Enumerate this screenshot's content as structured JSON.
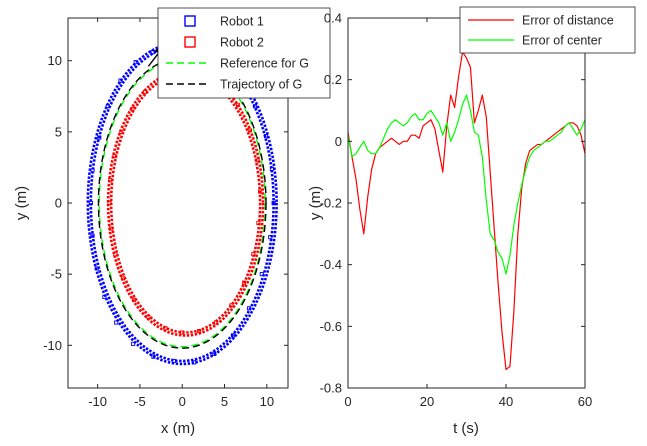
{
  "chart_data": [
    {
      "type": "scatter",
      "xlabel": "x (m)",
      "ylabel": "y (m)",
      "xlim": [
        -13.5,
        12.5
      ],
      "ylim": [
        -13,
        13
      ],
      "xticks": [
        -10,
        -5,
        0,
        5,
        10
      ],
      "yticks": [
        10,
        5,
        0,
        -5,
        -10
      ],
      "grid": false,
      "legend_placement": "top-right",
      "series": [
        {
          "name": "Robot 1",
          "color": "#0000ff",
          "style": "open-square-markers",
          "ellipse": {
            "cx": 0,
            "cy": 0,
            "rx": 10.8,
            "ry": 11.1
          },
          "points": [
            [
              -3.5,
              10.6
            ],
            [
              -5.5,
              9.9
            ],
            [
              -7.3,
              8.6
            ],
            [
              -8.8,
              6.8
            ],
            [
              -9.8,
              4.6
            ],
            [
              -10.6,
              2.3
            ],
            [
              -10.8,
              0
            ],
            [
              -10.6,
              -2.3
            ],
            [
              -10.1,
              -4.6
            ],
            [
              -9.2,
              -6.6
            ],
            [
              -7.8,
              -8.4
            ],
            [
              -5.8,
              -9.9
            ],
            [
              -3.4,
              -10.8
            ],
            [
              -1.0,
              -11.1
            ],
            [
              1.4,
              -11.2
            ],
            [
              3.8,
              -10.6
            ],
            [
              6.0,
              -9.3
            ],
            [
              7.9,
              -7.4
            ],
            [
              9.4,
              -5.0
            ],
            [
              10.4,
              -2.4
            ],
            [
              10.8,
              0
            ],
            [
              10.6,
              2.4
            ],
            [
              9.9,
              4.7
            ],
            [
              8.6,
              6.8
            ],
            [
              7.0,
              8.5
            ]
          ]
        },
        {
          "name": "Robot 2",
          "color": "#ff0000",
          "style": "open-square-markers",
          "ellipse": {
            "cx": 0.4,
            "cy": 0,
            "rx": 8.8,
            "ry": 9.1
          },
          "points": [
            [
              -2.7,
              8.6
            ],
            [
              -4.4,
              7.8
            ],
            [
              -5.9,
              6.6
            ],
            [
              -7.2,
              5.0
            ],
            [
              -8.0,
              3.3
            ],
            [
              -8.5,
              1.6
            ],
            [
              -8.6,
              0
            ],
            [
              -8.4,
              -1.8
            ],
            [
              -7.9,
              -3.6
            ],
            [
              -7.0,
              -5.3
            ],
            [
              -5.7,
              -6.8
            ],
            [
              -4.0,
              -8.0
            ],
            [
              -2.0,
              -8.8
            ],
            [
              0,
              -9.1
            ],
            [
              2.0,
              -9.0
            ],
            [
              4.0,
              -8.4
            ],
            [
              5.8,
              -7.2
            ],
            [
              7.3,
              -5.6
            ],
            [
              8.4,
              -3.6
            ],
            [
              9.0,
              -1.4
            ],
            [
              9.2,
              0.8
            ],
            [
              8.9,
              3.0
            ],
            [
              8.0,
              5.1
            ],
            [
              6.6,
              6.9
            ],
            [
              4.6,
              8.3
            ]
          ]
        },
        {
          "name": "Reference for G",
          "color": "#00ff00",
          "style": "dashed-line",
          "ellipse": {
            "cx": 0,
            "cy": 0,
            "rx": 9.8,
            "ry": 10.1
          },
          "points": [
            [
              -3.6,
              9.4
            ],
            [
              -6.5,
              7.6
            ],
            [
              -8.6,
              4.8
            ],
            [
              -9.7,
              1.6
            ],
            [
              -9.6,
              -1.8
            ],
            [
              -8.6,
              -5.0
            ],
            [
              -6.6,
              -7.7
            ],
            [
              -3.9,
              -9.5
            ],
            [
              -0.8,
              -10.1
            ],
            [
              2.4,
              -9.8
            ],
            [
              5.4,
              -8.4
            ],
            [
              7.8,
              -6.1
            ],
            [
              9.3,
              -3.2
            ],
            [
              9.8,
              0
            ],
            [
              9.3,
              3.2
            ],
            [
              7.8,
              6.1
            ],
            [
              5.4,
              8.4
            ],
            [
              2.4,
              9.8
            ]
          ]
        },
        {
          "name": "Trajectory of G",
          "color": "#000000",
          "style": "dashed-line",
          "ellipse": {
            "cx": 0,
            "cy": 0,
            "rx": 9.9,
            "ry": 10.2
          },
          "points": [
            [
              -3.7,
              9.5
            ],
            [
              -6.6,
              7.7
            ],
            [
              -8.7,
              4.9
            ],
            [
              -9.8,
              1.6
            ],
            [
              -9.7,
              -1.8
            ],
            [
              -8.7,
              -5.1
            ],
            [
              -6.7,
              -7.8
            ],
            [
              -4.0,
              -9.6
            ],
            [
              -0.8,
              -10.2
            ],
            [
              2.4,
              -9.9
            ],
            [
              5.5,
              -8.5
            ],
            [
              7.9,
              -6.2
            ],
            [
              9.4,
              -3.3
            ],
            [
              9.9,
              0
            ],
            [
              9.4,
              3.3
            ],
            [
              7.9,
              6.2
            ],
            [
              5.5,
              8.5
            ],
            [
              2.4,
              9.9
            ]
          ]
        }
      ],
      "annotations": [
        {
          "type": "arrow",
          "from": [
            -4.0,
            9.6
          ],
          "to": [
            -2.2,
            11.0
          ],
          "color": "#000000"
        }
      ]
    },
    {
      "type": "line",
      "xlabel": "t (s)",
      "ylabel": "y (m)",
      "xlim": [
        0,
        60
      ],
      "ylim": [
        -0.8,
        0.4
      ],
      "xticks": [
        0,
        20,
        40,
        60
      ],
      "yticks": [
        0.4,
        0.2,
        0,
        -0.2,
        -0.4,
        -0.6,
        -0.8
      ],
      "grid": false,
      "legend_placement": "top-right",
      "series": [
        {
          "name": "Error of distance",
          "color": "#ff0000",
          "x": [
            0,
            1,
            2,
            3,
            4,
            5,
            6,
            7,
            8,
            9,
            10,
            11,
            12,
            13,
            14,
            15,
            16,
            17,
            18,
            19,
            20,
            21,
            22,
            23,
            24,
            25,
            26,
            27,
            28,
            29,
            30,
            31,
            32,
            33,
            34,
            35,
            36,
            37,
            38,
            39,
            40,
            41,
            42,
            43,
            44,
            45,
            46,
            47,
            48,
            49,
            50,
            51,
            52,
            53,
            54,
            55,
            56,
            57,
            58,
            59,
            60
          ],
          "values": [
            0.03,
            -0.05,
            -0.12,
            -0.22,
            -0.3,
            -0.18,
            -0.09,
            -0.04,
            -0.02,
            -0.01,
            0.0,
            0.01,
            0.0,
            -0.01,
            0.0,
            0.0,
            0.02,
            0.02,
            0.01,
            0.05,
            0.06,
            0.07,
            0.04,
            -0.03,
            -0.1,
            0.05,
            0.15,
            0.11,
            0.21,
            0.29,
            0.27,
            0.24,
            0.06,
            0.1,
            0.15,
            0.08,
            -0.1,
            -0.28,
            -0.46,
            -0.62,
            -0.74,
            -0.73,
            -0.55,
            -0.3,
            -0.15,
            -0.07,
            -0.03,
            -0.02,
            -0.01,
            -0.01,
            0.0,
            0.01,
            0.02,
            0.03,
            0.04,
            0.05,
            0.06,
            0.06,
            0.05,
            0.02,
            -0.04
          ]
        },
        {
          "name": "Error of center",
          "color": "#00ff00",
          "x": [
            0,
            1,
            2,
            3,
            4,
            5,
            6,
            7,
            8,
            9,
            10,
            11,
            12,
            13,
            14,
            15,
            16,
            17,
            18,
            19,
            20,
            21,
            22,
            23,
            24,
            25,
            26,
            27,
            28,
            29,
            30,
            31,
            32,
            33,
            34,
            35,
            36,
            37,
            38,
            39,
            40,
            41,
            42,
            43,
            44,
            45,
            46,
            47,
            48,
            49,
            50,
            51,
            52,
            53,
            54,
            55,
            56,
            57,
            58,
            59,
            60
          ],
          "values": [
            0.02,
            -0.05,
            -0.04,
            -0.02,
            0.0,
            -0.03,
            -0.04,
            -0.04,
            -0.02,
            0.01,
            0.04,
            0.06,
            0.07,
            0.06,
            0.05,
            0.06,
            0.08,
            0.09,
            0.07,
            0.07,
            0.09,
            0.1,
            0.08,
            0.06,
            0.02,
            0.06,
            0.0,
            0.03,
            0.07,
            0.12,
            0.15,
            0.1,
            0.03,
            0.02,
            -0.05,
            -0.19,
            -0.3,
            -0.32,
            -0.36,
            -0.38,
            -0.43,
            -0.37,
            -0.27,
            -0.2,
            -0.14,
            -0.09,
            -0.05,
            -0.03,
            -0.02,
            -0.01,
            0.0,
            0.0,
            0.01,
            0.02,
            0.03,
            0.05,
            0.06,
            0.04,
            0.02,
            0.04,
            0.07
          ]
        }
      ]
    }
  ]
}
